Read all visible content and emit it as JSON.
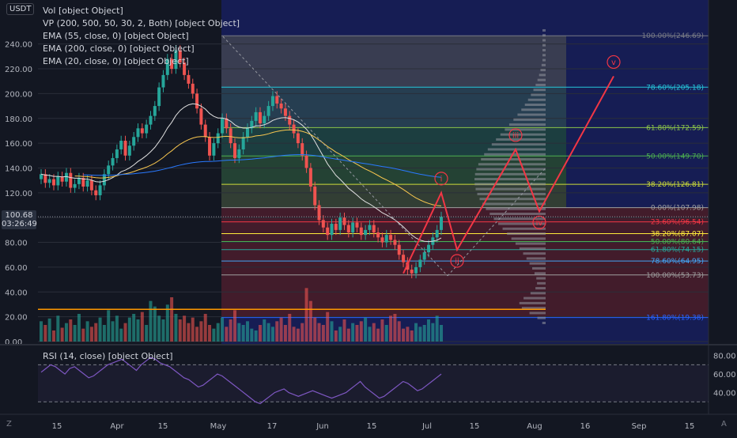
{
  "symbol": "USDT",
  "indicators": [
    "Vol [object Object]",
    "VP (200, 500, 50, 30, 2, Both) [object Object]",
    "EMA (55, close, 0) [object Object]",
    "EMA (200, close, 0) [object Object]",
    "EMA (20, close, 0) [object Object]"
  ],
  "rsi_title": "RSI (14, close) [object Object]",
  "price_tag": {
    "price": "100.68",
    "countdown": "03:26:49"
  },
  "buttons": {
    "zoom": "Z",
    "auto": "A"
  },
  "colors": {
    "up": "#26a69a",
    "down": "#ef5350",
    "wave": "#f23645",
    "rsi": "#7e57c2"
  },
  "chart_data": {
    "type": "candlestick",
    "price_axis": {
      "min": 0,
      "max": 250,
      "ticks": [
        "0.00",
        "20.00",
        "40.00",
        "60.00",
        "80.00",
        "100.00",
        "120.00",
        "140.00",
        "160.00",
        "180.00",
        "200.00",
        "220.00",
        "240.00"
      ]
    },
    "x_axis_labels": [
      "15",
      "Apr",
      "15",
      "May",
      "17",
      "Jun",
      "15",
      "Jul",
      "15",
      "Aug",
      "16",
      "Sep",
      "15"
    ],
    "closes": [
      135,
      128,
      131,
      126,
      133,
      129,
      136,
      124,
      127,
      132,
      125,
      130,
      122,
      118,
      126,
      135,
      142,
      148,
      155,
      162,
      150,
      158,
      165,
      172,
      168,
      175,
      182,
      190,
      205,
      215,
      228,
      220,
      235,
      225,
      215,
      208,
      200,
      188,
      175,
      165,
      150,
      160,
      168,
      180,
      172,
      160,
      148,
      155,
      165,
      172,
      178,
      185,
      176,
      182,
      190,
      198,
      192,
      188,
      182,
      175,
      168,
      160,
      150,
      140,
      125,
      110,
      98,
      92,
      86,
      95,
      90,
      100,
      94,
      88,
      96,
      92,
      86,
      90,
      94,
      88,
      84,
      80,
      86,
      82,
      78,
      70,
      64,
      58,
      55,
      60,
      66,
      72,
      78,
      84,
      90,
      100.68
    ],
    "volume_max": 60,
    "volumes": [
      22,
      18,
      25,
      12,
      28,
      15,
      20,
      24,
      18,
      30,
      14,
      22,
      16,
      20,
      26,
      18,
      34,
      22,
      28,
      14,
      20,
      26,
      30,
      24,
      32,
      18,
      44,
      38,
      28,
      24,
      40,
      48,
      30,
      24,
      28,
      20,
      26,
      16,
      22,
      30,
      18,
      14,
      20,
      26,
      16,
      24,
      34,
      20,
      18,
      22,
      14,
      12,
      18,
      24,
      20,
      16,
      22,
      26,
      18,
      30,
      16,
      14,
      20,
      58,
      44,
      26,
      20,
      18,
      32,
      22,
      12,
      16,
      24,
      14,
      20,
      18,
      22,
      26,
      16,
      20,
      14,
      24,
      18,
      28,
      30,
      22,
      14,
      16,
      12,
      20,
      16,
      18,
      24,
      20,
      28,
      18
    ],
    "fib_upper": [
      {
        "label": "100.00%(246.69)",
        "price": 246.69
      },
      {
        "label": "78.60%(205.18)",
        "price": 205.18
      },
      {
        "label": "61.80%(172.59)",
        "price": 172.59
      },
      {
        "label": "50.00%(149.70)",
        "price": 149.7
      },
      {
        "label": "38.20%(126.81)",
        "price": 126.81
      },
      {
        "label": "0.00%(107.98)",
        "price": 107.98
      }
    ],
    "fib_lower": [
      {
        "label": "23.60%(96.54)",
        "price": 96.54
      },
      {
        "label": "38.20%(87.07)",
        "price": 87.07
      },
      {
        "label": "50.00%(80.64)",
        "price": 80.64
      },
      {
        "label": "61.80%(74.15)",
        "price": 74.15
      },
      {
        "label": "78.60%(64.95)",
        "price": 64.95
      },
      {
        "label": "100.00%(53.73)",
        "price": 53.73
      },
      {
        "label": "161.80%(19.38)",
        "price": 19.38
      }
    ],
    "waves": [
      {
        "label": "i",
        "price": 120
      },
      {
        "label": "ii",
        "price": 74
      },
      {
        "label": "iii",
        "price": 155
      },
      {
        "label": "iv",
        "price": 105
      },
      {
        "label": "v",
        "price": 214
      }
    ],
    "rsi_axis": {
      "ticks": [
        "40.00",
        "60.00",
        "80.00"
      ],
      "levels": [
        70,
        30
      ],
      "min": 20,
      "max": 90
    },
    "rsi": [
      62,
      66,
      70,
      68,
      64,
      60,
      66,
      68,
      64,
      60,
      56,
      58,
      62,
      66,
      70,
      72,
      74,
      76,
      72,
      68,
      64,
      70,
      74,
      78,
      76,
      72,
      70,
      68,
      64,
      60,
      56,
      54,
      50,
      46,
      48,
      52,
      56,
      60,
      58,
      54,
      50,
      46,
      42,
      38,
      34,
      30,
      28,
      32,
      36,
      40,
      42,
      44,
      40,
      38,
      36,
      38,
      40,
      42,
      40,
      38,
      36,
      34,
      36,
      38,
      40,
      44,
      48,
      52,
      46,
      42,
      38,
      34,
      36,
      40,
      44,
      48,
      52,
      50,
      46,
      42,
      44,
      48,
      52,
      56,
      60
    ]
  }
}
